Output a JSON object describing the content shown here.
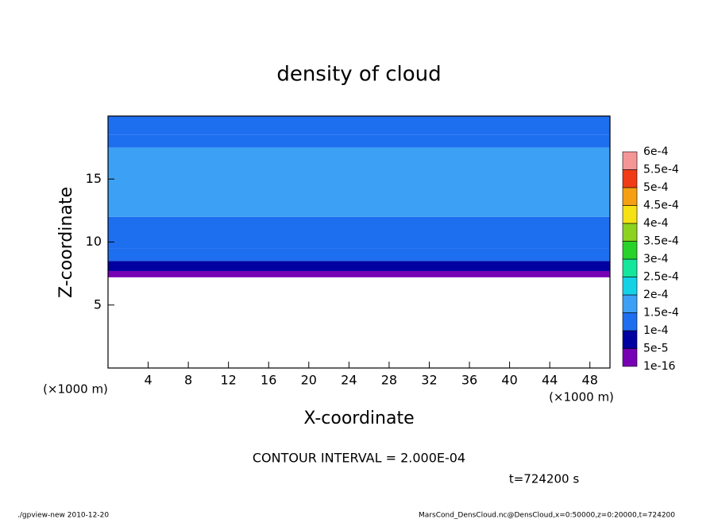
{
  "chart_data": {
    "type": "contourf",
    "title": "density of cloud",
    "xlabel": "X-coordinate",
    "ylabel": "Z-coordinate",
    "x_unit_left": "(×1000 m)",
    "x_unit_right": "(×1000 m)",
    "xlim": [
      0,
      50
    ],
    "xticks": [
      4,
      8,
      12,
      16,
      20,
      24,
      28,
      32,
      36,
      40,
      44,
      48
    ],
    "ylim": [
      0,
      20
    ],
    "yticks": [
      5,
      10,
      15
    ],
    "field": {
      "z_edges": [
        7.2,
        7.7,
        8.5,
        9.5,
        12,
        17.5,
        18.5,
        20
      ],
      "values": [
        3e-05,
        8e-05,
        0.00012,
        0.00013,
        0.00016,
        0.00014,
        0.00012
      ]
    },
    "levels": [
      {
        "value": 1e-16,
        "label": "1e-16"
      },
      {
        "value": 5e-05,
        "label": "5e-5"
      },
      {
        "value": 0.0001,
        "label": "1e-4"
      },
      {
        "value": 0.00015,
        "label": "1.5e-4"
      },
      {
        "value": 0.0002,
        "label": "2e-4"
      },
      {
        "value": 0.00025,
        "label": "2.5e-4"
      },
      {
        "value": 0.0003,
        "label": "3e-4"
      },
      {
        "value": 0.00035,
        "label": "3.5e-4"
      },
      {
        "value": 0.0004,
        "label": "4e-4"
      },
      {
        "value": 0.00045,
        "label": "4.5e-4"
      },
      {
        "value": 0.0005,
        "label": "5e-4"
      },
      {
        "value": 0.00055,
        "label": "5.5e-4"
      },
      {
        "value": 0.0006,
        "label": "6e-4"
      }
    ],
    "colors": [
      "#7800b4",
      "#0000a0",
      "#1e6ef0",
      "#3ca0f5",
      "#14d2e6",
      "#14e69b",
      "#28d228",
      "#8cd21e",
      "#f5e114",
      "#f5a014",
      "#f03c14",
      "#f59696"
    ],
    "contour_interval": "CONTOUR INTERVAL = 2.000E-04",
    "time_label": "t=724200 s",
    "footer_left": "./gpview-new   2010-12-20",
    "footer_right": "MarsCond_DensCloud.nc@DensCloud,x=0:50000,z=0:20000,t=724200"
  }
}
